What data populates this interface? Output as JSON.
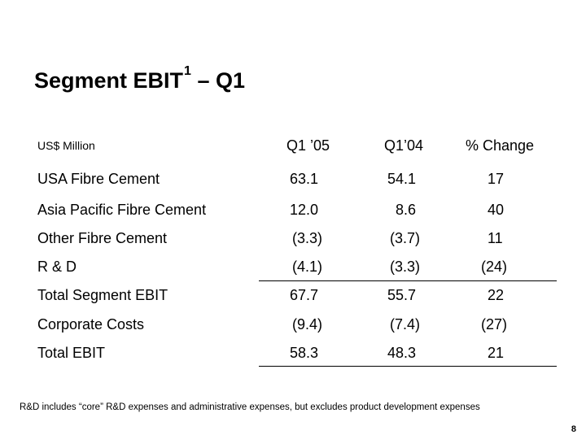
{
  "slide": {
    "title_main": "Segment EBIT",
    "title_sup": "1",
    "title_rest": " – Q1",
    "unit_label": "US$ Million",
    "footnote": "R&D includes “core” R&D expenses and administrative expenses, but excludes product development expenses",
    "page_number": "8"
  },
  "table": {
    "columns": [
      "Q1 ’05",
      "Q1’04",
      "% Change"
    ],
    "rows": [
      {
        "label": "USA Fibre Cement",
        "q1_05": "63.1",
        "q1_04": "54.1",
        "change": "17"
      },
      {
        "label": "Asia Pacific Fibre Cement",
        "q1_05": "12.0",
        "q1_04": "8.6",
        "change": "40"
      },
      {
        "label": "Other Fibre Cement",
        "q1_05": "(3.3)",
        "q1_04": "(3.7)",
        "change": "11"
      },
      {
        "label": "R & D",
        "q1_05": "(4.1)",
        "q1_04": "(3.3)",
        "change": "(24)"
      },
      {
        "label": "Total Segment EBIT",
        "q1_05": "67.7",
        "q1_04": "55.7",
        "change": "22"
      },
      {
        "label": "Corporate Costs",
        "q1_05": "(9.4)",
        "q1_04": "(7.4)",
        "change": "(27)"
      },
      {
        "label": "Total EBIT",
        "q1_05": "58.3",
        "q1_04": "48.3",
        "change": "21"
      }
    ]
  }
}
